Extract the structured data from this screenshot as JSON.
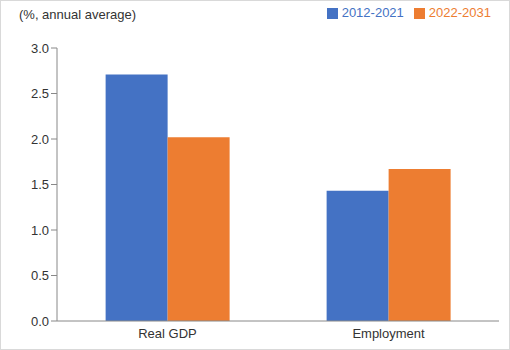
{
  "chart_data": {
    "type": "bar",
    "ylabel": "(%, annual average)",
    "categories": [
      "Real GDP",
      "Employment"
    ],
    "series": [
      {
        "name": "2012-2021",
        "color": "#4472c4",
        "values": [
          2.71,
          1.43
        ]
      },
      {
        "name": "2022-2031",
        "color": "#ed7d31",
        "values": [
          2.02,
          1.67
        ]
      }
    ],
    "ylim": [
      0,
      3
    ],
    "yticks": [
      {
        "value": 0,
        "label": "0.0"
      },
      0.5,
      {
        "value": 1,
        "label": "1.0"
      },
      1.5,
      {
        "value": 2,
        "label": "2.0"
      },
      2.5,
      {
        "value": 3,
        "label": "3.0"
      }
    ],
    "grid": false,
    "legend": "top-right"
  }
}
